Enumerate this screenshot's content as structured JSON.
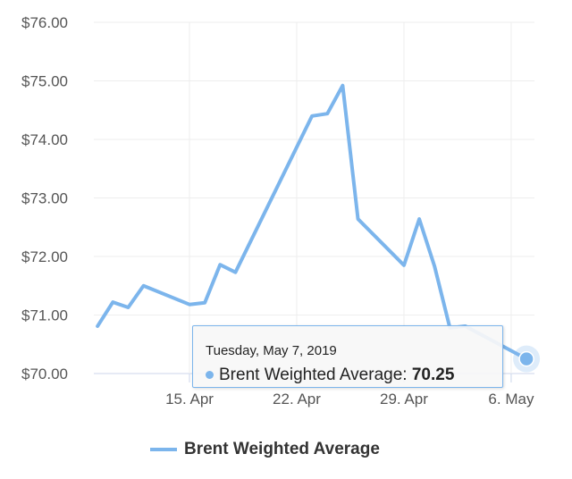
{
  "chart_data": {
    "type": "line",
    "title": "",
    "xlabel": "",
    "ylabel": "",
    "ylim": [
      70,
      76
    ],
    "yticks": [
      70,
      71,
      72,
      73,
      74,
      75,
      76
    ],
    "ytick_labels": [
      "$70.00",
      "$71.00",
      "$72.00",
      "$73.00",
      "$74.00",
      "$75.00",
      "$76.00"
    ],
    "xticks": [
      {
        "day": 6,
        "label": "15. Apr"
      },
      {
        "day": 13,
        "label": "22. Apr"
      },
      {
        "day": 20,
        "label": "29. Apr"
      },
      {
        "day": 27,
        "label": "6. May"
      }
    ],
    "xlim": [
      -0.1,
      28.2
    ],
    "series": [
      {
        "name": "Brent Weighted Average",
        "color": "#7cb5ec",
        "dates": [
          "2019-04-09",
          "2019-04-10",
          "2019-04-11",
          "2019-04-12",
          "2019-04-15",
          "2019-04-16",
          "2019-04-17",
          "2019-04-18",
          "2019-04-23",
          "2019-04-24",
          "2019-04-25",
          "2019-04-26",
          "2019-04-29",
          "2019-04-30",
          "2019-05-01",
          "2019-05-02",
          "2019-05-03",
          "2019-05-07"
        ],
        "x": [
          0,
          1,
          2,
          3,
          6,
          7,
          8,
          9,
          14,
          15,
          16,
          17,
          20,
          21,
          22,
          23,
          24,
          28
        ],
        "values": [
          70.81,
          71.22,
          71.13,
          71.5,
          71.18,
          71.21,
          71.86,
          71.73,
          74.4,
          74.44,
          74.92,
          72.64,
          71.85,
          72.64,
          71.83,
          70.78,
          70.81,
          70.25
        ]
      }
    ],
    "legend": "bottom-center",
    "grid": true,
    "tooltip": {
      "date": "Tuesday, May 7, 2019",
      "series": "Brent Weighted Average:",
      "value": "70.25"
    }
  }
}
